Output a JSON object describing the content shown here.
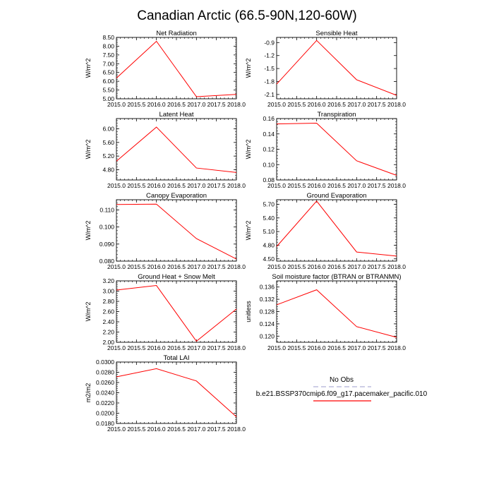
{
  "figure": {
    "title": "Canadian Arctic (66.5-90N,120-60W)"
  },
  "legend": {
    "entries": [
      {
        "label": "No Obs",
        "color": "#b0b0d8",
        "style": "dashed"
      },
      {
        "label": "b.e21.BSSP370cmip6.f09_g17.pacemaker_pacific.010",
        "color": "#ff0000",
        "style": "solid"
      }
    ]
  },
  "chart_data": [
    {
      "type": "line",
      "title": "Net Radiation",
      "ylabel": "W/m^2",
      "x": [
        2015,
        2016,
        2017,
        2018
      ],
      "xlim": [
        2015,
        2018
      ],
      "xticks": [
        "2015.0",
        "2015.5",
        "2016.0",
        "2016.5",
        "2017.0",
        "2017.5",
        "2018.0"
      ],
      "ylim": [
        5.0,
        8.5
      ],
      "yticks": [
        "5.00",
        "5.50",
        "6.00",
        "6.50",
        "7.00",
        "7.50",
        "8.00",
        "8.50"
      ],
      "yticks_values": [
        5.0,
        5.5,
        6.0,
        6.5,
        7.0,
        7.5,
        8.0,
        8.5
      ],
      "series": [
        {
          "values": [
            6.18,
            8.28,
            5.12,
            5.25
          ],
          "color": "#ff0000"
        }
      ]
    },
    {
      "type": "line",
      "title": "Sensible Heat",
      "ylabel": "W/m^2",
      "x": [
        2015,
        2016,
        2017,
        2018
      ],
      "xlim": [
        2015,
        2018
      ],
      "xticks": [
        "2015.0",
        "2015.5",
        "2016.0",
        "2016.5",
        "2017.0",
        "2017.5",
        "2018.0"
      ],
      "ylim": [
        -2.2,
        -0.78
      ],
      "yticks": [
        "-0.9",
        "-1.2",
        "-1.5",
        "-1.8",
        "-2.1"
      ],
      "yticks_values": [
        -0.9,
        -1.2,
        -1.5,
        -1.8,
        -2.1
      ],
      "series": [
        {
          "values": [
            -1.86,
            -0.85,
            -1.76,
            -2.12
          ],
          "color": "#ff0000"
        }
      ]
    },
    {
      "type": "line",
      "title": "Latent Heat",
      "ylabel": "W/m^2",
      "x": [
        2015,
        2016,
        2017,
        2018
      ],
      "xlim": [
        2015,
        2018
      ],
      "xticks": [
        "2015.0",
        "2015.5",
        "2016.0",
        "2016.5",
        "2017.0",
        "2017.5",
        "2018.0"
      ],
      "ylim": [
        4.5,
        6.3
      ],
      "yticks": [
        "4.80",
        "5.20",
        "5.60",
        "6.00"
      ],
      "yticks_values": [
        4.8,
        5.2,
        5.6,
        6.0
      ],
      "series": [
        {
          "values": [
            5.05,
            6.05,
            4.85,
            4.72
          ],
          "color": "#ff0000"
        }
      ]
    },
    {
      "type": "line",
      "title": "Transpiration",
      "ylabel": "W/m^2",
      "x": [
        2015,
        2016,
        2017,
        2018
      ],
      "xlim": [
        2015,
        2018
      ],
      "xticks": [
        "2015.0",
        "2015.5",
        "2016.0",
        "2016.5",
        "2017.0",
        "2017.5",
        "2018.0"
      ],
      "ylim": [
        0.08,
        0.16
      ],
      "yticks": [
        "0.08",
        "0.10",
        "0.12",
        "0.14",
        "0.16"
      ],
      "yticks_values": [
        0.08,
        0.1,
        0.12,
        0.14,
        0.16
      ],
      "series": [
        {
          "values": [
            0.153,
            0.154,
            0.105,
            0.086
          ],
          "color": "#ff0000"
        }
      ]
    },
    {
      "type": "line",
      "title": "Canopy Evaporation",
      "ylabel": "W/m^2",
      "x": [
        2015,
        2016,
        2017,
        2018
      ],
      "xlim": [
        2015,
        2018
      ],
      "xticks": [
        "2015.0",
        "2015.5",
        "2016.0",
        "2016.5",
        "2017.0",
        "2017.5",
        "2018.0"
      ],
      "ylim": [
        0.08,
        0.116
      ],
      "yticks": [
        "0.080",
        "0.090",
        "0.100",
        "0.110"
      ],
      "yticks_values": [
        0.08,
        0.09,
        0.1,
        0.11
      ],
      "series": [
        {
          "values": [
            0.1132,
            0.1134,
            0.0932,
            0.0812
          ],
          "color": "#ff0000"
        }
      ]
    },
    {
      "type": "line",
      "title": "Ground Evaporation",
      "ylabel": "W/m^2",
      "x": [
        2015,
        2016,
        2017,
        2018
      ],
      "xlim": [
        2015,
        2018
      ],
      "xticks": [
        "2015.0",
        "2015.5",
        "2016.0",
        "2016.5",
        "2017.0",
        "2017.5",
        "2018.0"
      ],
      "ylim": [
        4.45,
        5.8
      ],
      "yticks": [
        "4.50",
        "4.80",
        "5.10",
        "5.40",
        "5.70"
      ],
      "yticks_values": [
        4.5,
        4.8,
        5.1,
        5.4,
        5.7
      ],
      "series": [
        {
          "values": [
            4.77,
            5.77,
            4.65,
            4.56
          ],
          "color": "#ff0000"
        }
      ]
    },
    {
      "type": "line",
      "title": "Ground Heat + Snow Melt",
      "ylabel": "W/m^2",
      "x": [
        2015,
        2016,
        2017,
        2018
      ],
      "xlim": [
        2015,
        2018
      ],
      "xticks": [
        "2015.0",
        "2015.5",
        "2016.0",
        "2016.5",
        "2017.0",
        "2017.5",
        "2018.0"
      ],
      "ylim": [
        2.0,
        3.2
      ],
      "yticks": [
        "2.00",
        "2.20",
        "2.40",
        "2.60",
        "2.80",
        "3.00",
        "3.20"
      ],
      "yticks_values": [
        2.0,
        2.2,
        2.4,
        2.6,
        2.8,
        3.0,
        3.2
      ],
      "series": [
        {
          "values": [
            3.02,
            3.11,
            2.02,
            2.65
          ],
          "color": "#ff0000"
        }
      ]
    },
    {
      "type": "line",
      "title": "Soil moisture factor (BTRAN or BTRANMN)",
      "ylabel": "unitless",
      "x": [
        2015,
        2016,
        2017,
        2018
      ],
      "xlim": [
        2015,
        2018
      ],
      "xticks": [
        "2015.0",
        "2015.5",
        "2016.0",
        "2016.5",
        "2017.0",
        "2017.5",
        "2018.0"
      ],
      "ylim": [
        0.118,
        0.138
      ],
      "yticks": [
        "0.120",
        "0.124",
        "0.128",
        "0.132",
        "0.136"
      ],
      "yticks_values": [
        0.12,
        0.124,
        0.128,
        0.132,
        0.136
      ],
      "series": [
        {
          "values": [
            0.1302,
            0.1351,
            0.1231,
            0.1196
          ],
          "color": "#ff0000"
        }
      ]
    },
    {
      "type": "line",
      "title": "Total LAI",
      "ylabel": "m2/m2",
      "x": [
        2015,
        2016,
        2017,
        2018
      ],
      "xlim": [
        2015,
        2018
      ],
      "xticks": [
        "2015.0",
        "2015.5",
        "2016.0",
        "2016.5",
        "2017.0",
        "2017.5",
        "2018.0"
      ],
      "ylim": [
        0.018,
        0.03
      ],
      "yticks": [
        "0.0180",
        "0.0200",
        "0.0220",
        "0.0240",
        "0.0260",
        "0.0280",
        "0.0300"
      ],
      "yticks_values": [
        0.018,
        0.02,
        0.022,
        0.024,
        0.026,
        0.028,
        0.03
      ],
      "series": [
        {
          "values": [
            0.0271,
            0.0287,
            0.0263,
            0.0193
          ],
          "color": "#ff0000"
        }
      ]
    }
  ]
}
